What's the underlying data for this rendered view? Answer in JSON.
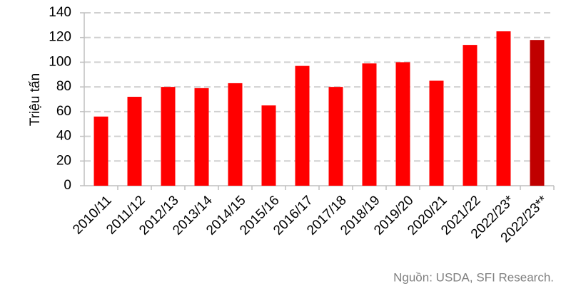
{
  "chart_data": {
    "type": "bar",
    "y_label": "Triệu tấn",
    "source": "Nguồn: USDA, SFI Research.",
    "categories": [
      "2010/11",
      "2011/12",
      "2012/13",
      "2013/14",
      "2014/15",
      "2015/16",
      "2016/17",
      "2017/18",
      "2018/19",
      "2019/20",
      "2020/21",
      "2021/22",
      "2022/23*",
      "2022/23**"
    ],
    "values": [
      56,
      72,
      80,
      79,
      83,
      65,
      97,
      80,
      99,
      100,
      85,
      114,
      125,
      118
    ],
    "colors": [
      "#ff0000",
      "#ff0000",
      "#ff0000",
      "#ff0000",
      "#ff0000",
      "#ff0000",
      "#ff0000",
      "#ff0000",
      "#ff0000",
      "#ff0000",
      "#ff0000",
      "#ff0000",
      "#ff0000",
      "#c00000"
    ],
    "ylim": [
      0,
      140
    ],
    "yticks": [
      0,
      20,
      40,
      60,
      80,
      100,
      120,
      140
    ],
    "grid": true
  }
}
